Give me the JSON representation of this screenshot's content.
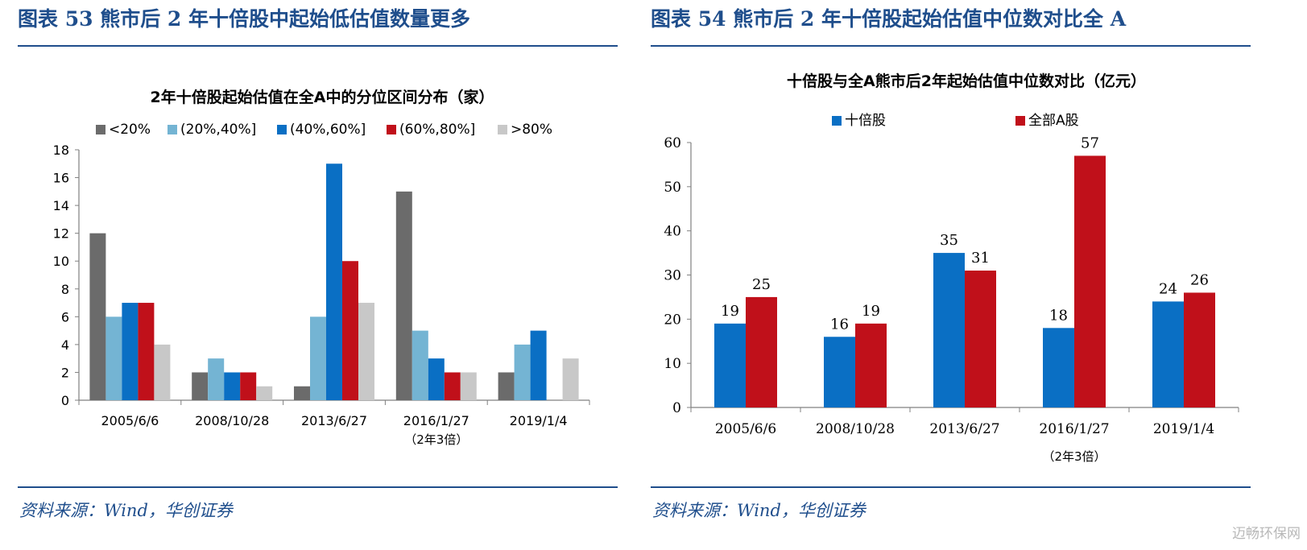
{
  "left": {
    "figure_title": "图表 53 熊市后 2 年十倍股中起始低估值数量更多",
    "source": "资料来源：Wind，华创证券"
  },
  "right": {
    "figure_title": "图表 54 熊市后 2 年十倍股起始估值中位数对比全 A",
    "source": "资料来源：Wind，华创证券"
  },
  "watermark": "迈畅环保网",
  "chart_data": [
    {
      "type": "bar",
      "title": "2年十倍股起始估值在全A中的分位区间分布（家）",
      "categories": [
        "2005/6/6",
        "2008/10/28",
        "2013/6/27",
        "2016/1/27",
        "2019/1/4"
      ],
      "category_note": {
        "index": 3,
        "text": "（2年3倍）"
      },
      "series": [
        {
          "name": "<20%",
          "color": "#6b6b6b",
          "values": [
            12,
            2,
            1,
            15,
            2
          ]
        },
        {
          "name": "(20%,40%]",
          "color": "#74b4d3",
          "values": [
            6,
            3,
            6,
            5,
            4
          ]
        },
        {
          "name": "(40%,60%]",
          "color": "#0a6fc4",
          "values": [
            7,
            2,
            17,
            3,
            5
          ]
        },
        {
          "name": "(60%,80%]",
          "color": "#c0101a",
          "values": [
            7,
            2,
            10,
            2,
            0
          ]
        },
        {
          "name": ">80%",
          "color": "#c8c8c8",
          "values": [
            4,
            1,
            7,
            2,
            3
          ]
        }
      ],
      "ylim": [
        0,
        18
      ],
      "yticks": [
        0,
        2,
        4,
        6,
        8,
        10,
        12,
        14,
        16,
        18
      ],
      "grid": false,
      "legend": "top"
    },
    {
      "type": "bar",
      "title": "十倍股与全A熊市后2年起始估值中位数对比（亿元）",
      "categories": [
        "2005/6/6",
        "2008/10/28",
        "2013/6/27",
        "2016/1/27",
        "2019/1/4"
      ],
      "category_note": {
        "index": 3,
        "text": "（2年3倍）"
      },
      "series": [
        {
          "name": "十倍股",
          "color": "#0a6fc4",
          "values": [
            19,
            16,
            35,
            18,
            24
          ]
        },
        {
          "name": "全部A股",
          "color": "#c0101a",
          "values": [
            25,
            19,
            31,
            57,
            26
          ]
        }
      ],
      "data_labels": true,
      "ylim": [
        0,
        60
      ],
      "yticks": [
        0,
        10,
        20,
        30,
        40,
        50,
        60
      ],
      "grid": false,
      "legend": "top"
    }
  ]
}
